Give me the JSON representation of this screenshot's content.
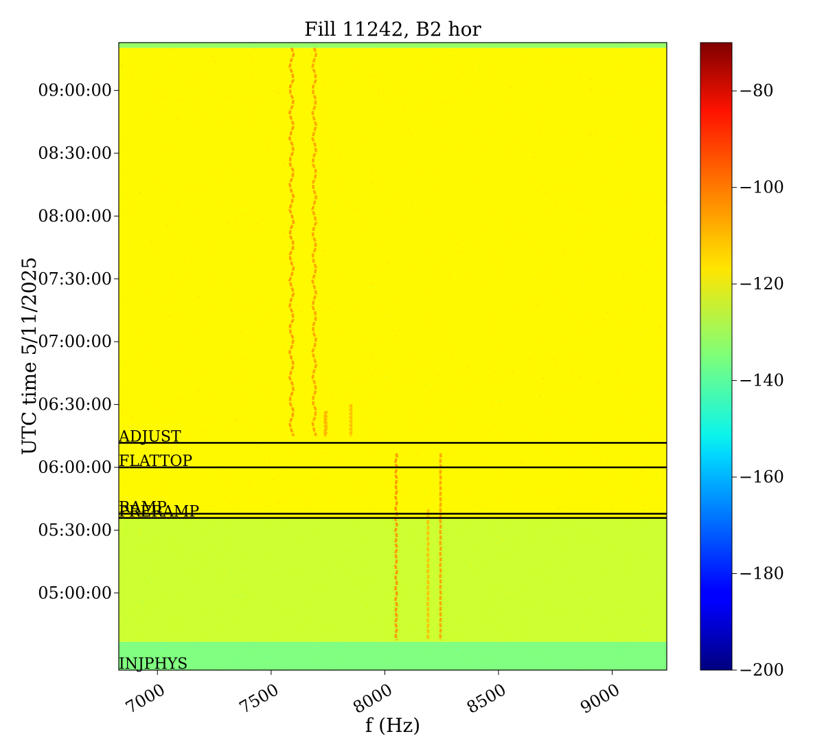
{
  "chart_data": {
    "type": "heatmap",
    "title": "Fill 11242, B2 hor",
    "xlabel": "f (Hz)",
    "ylabel": "UTC time 5/11/2025",
    "xlim": [
      6830,
      9240
    ],
    "ylim_seconds": [
      15790,
      33770
    ],
    "x_ticks": [
      {
        "value": 7000,
        "label": "7000"
      },
      {
        "value": 7500,
        "label": "7500"
      },
      {
        "value": 8000,
        "label": "8000"
      },
      {
        "value": 8500,
        "label": "8500"
      },
      {
        "value": 9000,
        "label": "9000"
      }
    ],
    "y_ticks": [
      {
        "value": 18000,
        "label": "05:00:00"
      },
      {
        "value": 19800,
        "label": "05:30:00"
      },
      {
        "value": 21600,
        "label": "06:00:00"
      },
      {
        "value": 23400,
        "label": "06:30:00"
      },
      {
        "value": 25200,
        "label": "07:00:00"
      },
      {
        "value": 27000,
        "label": "07:30:00"
      },
      {
        "value": 28800,
        "label": "08:00:00"
      },
      {
        "value": 30600,
        "label": "08:30:00"
      },
      {
        "value": 32400,
        "label": "09:00:00"
      }
    ],
    "colorbar": {
      "colormap": "jet",
      "min": -200,
      "max": -70,
      "ticks": [
        {
          "value": -80,
          "label": "−80"
        },
        {
          "value": -100,
          "label": "−100"
        },
        {
          "value": -120,
          "label": "−120"
        },
        {
          "value": -140,
          "label": "−140"
        },
        {
          "value": -160,
          "label": "−160"
        },
        {
          "value": -180,
          "label": "−180"
        },
        {
          "value": -200,
          "label": "−200"
        }
      ]
    },
    "bands": [
      {
        "from": 15790,
        "to": 16600,
        "level": -135
      },
      {
        "from": 16600,
        "to": 20130,
        "level": -125
      },
      {
        "from": 20130,
        "to": 33620,
        "level": -118
      },
      {
        "from": 33620,
        "to": 33770,
        "level": -132
      }
    ],
    "spectral_lines": [
      {
        "x": 7590,
        "from": 22500,
        "to": 33620,
        "level": -105,
        "wiggle": 8
      },
      {
        "x": 7690,
        "from": 22500,
        "to": 33620,
        "level": -106,
        "wiggle": 7
      },
      {
        "x": 7740,
        "from": 22500,
        "to": 23200,
        "level": -108,
        "wiggle": 2
      },
      {
        "x": 7850,
        "from": 22500,
        "to": 23400,
        "level": -110,
        "wiggle": 2
      },
      {
        "x": 8050,
        "from": 16650,
        "to": 22000,
        "level": -104,
        "wiggle": 3
      },
      {
        "x": 8190,
        "from": 16650,
        "to": 20400,
        "level": -110,
        "wiggle": 1
      },
      {
        "x": 8245,
        "from": 16650,
        "to": 22000,
        "level": -106,
        "wiggle": 1
      }
    ],
    "mode_lines": [
      {
        "label": "ADJUST",
        "time": 22300
      },
      {
        "label": "FLATTOP",
        "time": 21600
      },
      {
        "label": "RAMP",
        "time": 20270
      },
      {
        "label": "PRERAMP",
        "time": 20150
      },
      {
        "label": "INJPHYS",
        "time": 15790
      }
    ]
  }
}
